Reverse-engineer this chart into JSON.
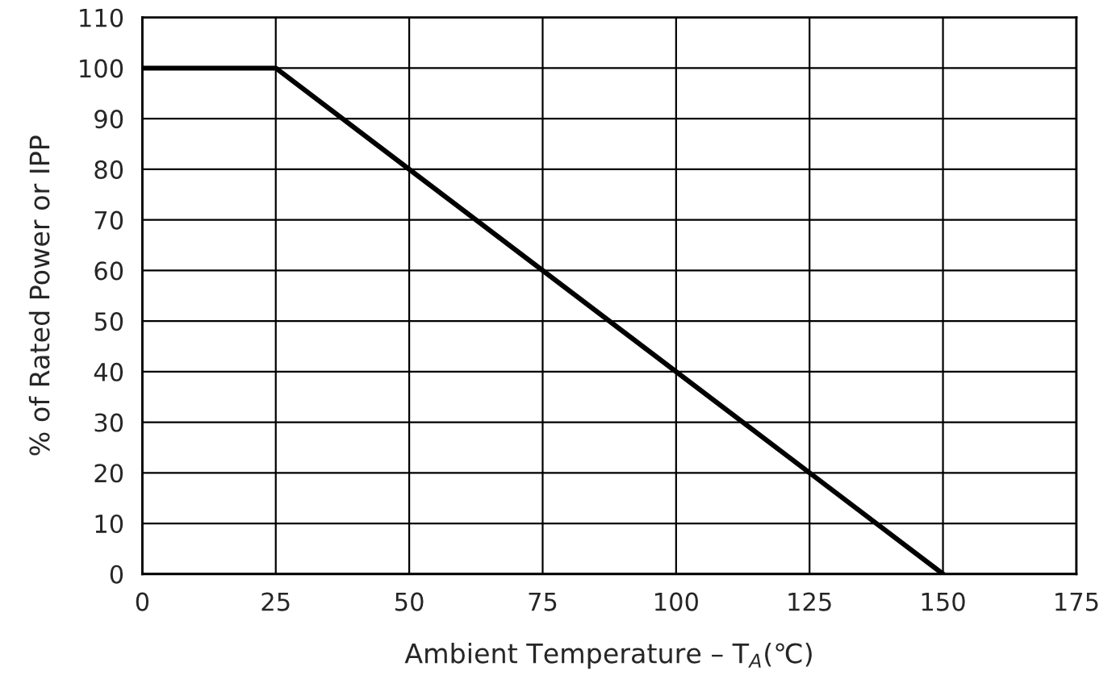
{
  "chart_data": {
    "type": "line",
    "xlabel": "Ambient Temperature – T$_{A}$(℃)",
    "ylabel": "% of Rated Power or IPP",
    "x": [
      0,
      25,
      150
    ],
    "series": [
      {
        "color": "#000000",
        "values": [
          100,
          100,
          0
        ]
      }
    ],
    "xlim": [
      0,
      175
    ],
    "xticks": [
      0,
      25,
      50,
      75,
      100,
      125,
      150,
      175
    ],
    "ylim": [
      0,
      110
    ],
    "yticks": [
      0,
      10,
      20,
      30,
      40,
      50,
      60,
      70,
      80,
      90,
      100,
      110
    ],
    "grid": true,
    "marker": "none",
    "line_style": "solid"
  }
}
